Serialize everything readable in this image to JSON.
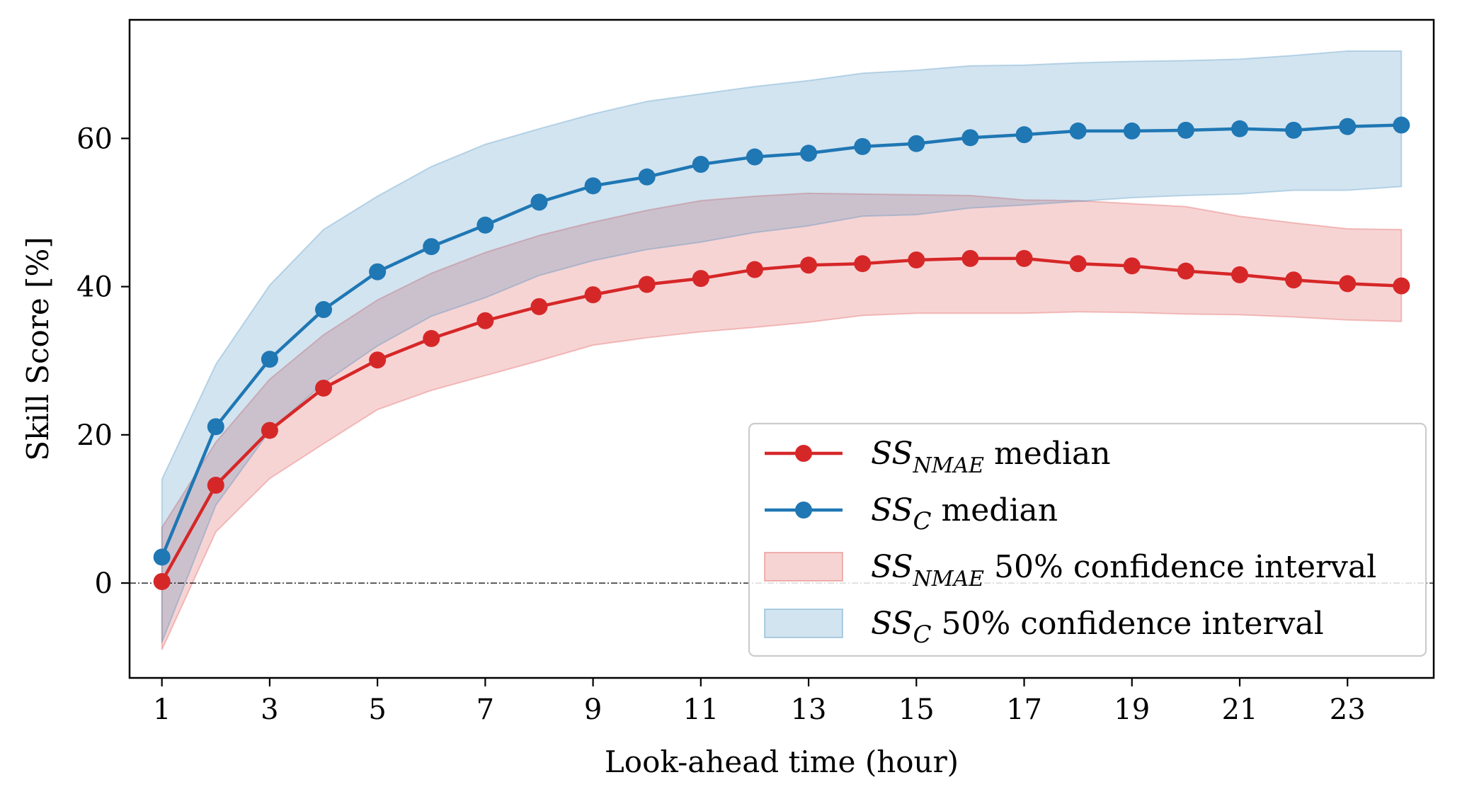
{
  "chart_data": {
    "type": "line",
    "title": "",
    "xlabel": "Look-ahead time (hour)",
    "ylabel": "Skill Score [%]",
    "x": [
      1,
      2,
      3,
      4,
      5,
      6,
      7,
      8,
      9,
      10,
      11,
      12,
      13,
      14,
      15,
      16,
      17,
      18,
      19,
      20,
      21,
      22,
      23,
      24
    ],
    "xlim": [
      0.4,
      24.6
    ],
    "ylim": [
      -12.8,
      76
    ],
    "xticks": [
      1,
      3,
      5,
      7,
      9,
      11,
      13,
      15,
      17,
      19,
      21,
      23
    ],
    "yticks": [
      0,
      20,
      40,
      60
    ],
    "zero_line": true,
    "colors": {
      "red": "#d62728",
      "blue": "#1f77b4"
    },
    "series": [
      {
        "name": "SS_NMAE median",
        "base": "SS",
        "sub": "NMAE",
        "suffix": " median",
        "color": "#d62728",
        "kind": "line",
        "values": [
          0.2,
          13.2,
          20.6,
          26.3,
          30.1,
          33.0,
          35.4,
          37.3,
          38.9,
          40.3,
          41.1,
          42.3,
          42.9,
          43.1,
          43.6,
          43.8,
          43.8,
          43.1,
          42.8,
          42.1,
          41.6,
          40.9,
          40.4,
          40.1
        ]
      },
      {
        "name": "SS_C median",
        "base": "SS",
        "sub": "C",
        "suffix": " median",
        "color": "#1f77b4",
        "kind": "line",
        "values": [
          3.5,
          21.1,
          30.2,
          36.9,
          42.0,
          45.4,
          48.3,
          51.4,
          53.6,
          54.8,
          56.5,
          57.5,
          58.0,
          58.9,
          59.3,
          60.1,
          60.5,
          61.0,
          61.0,
          61.1,
          61.3,
          61.1,
          61.6,
          61.8
        ]
      }
    ],
    "bands": [
      {
        "name": "SS_NMAE 50% confidence interval",
        "base": "SS",
        "sub": "NMAE",
        "suffix": " 50% confidence interval",
        "color": "#d62728",
        "kind": "band",
        "lower": [
          -9,
          6.9,
          14.1,
          18.8,
          23.4,
          26.0,
          28.0,
          30.0,
          32.1,
          33.1,
          33.9,
          34.5,
          35.2,
          36.1,
          36.4,
          36.4,
          36.4,
          36.6,
          36.5,
          36.3,
          36.2,
          35.9,
          35.5,
          35.3
        ],
        "upper": [
          7.5,
          19.0,
          27.5,
          33.5,
          38.2,
          41.8,
          44.6,
          46.9,
          48.7,
          50.3,
          51.6,
          52.2,
          52.6,
          52.5,
          52.4,
          52.3,
          51.7,
          51.6,
          51.2,
          50.8,
          49.5,
          48.6,
          47.8,
          47.7
        ]
      },
      {
        "name": "SS_C 50% confidence interval",
        "base": "SS",
        "sub": "C",
        "suffix": " 50% confidence interval",
        "color": "#1f77b4",
        "kind": "band",
        "lower": [
          -8,
          10.5,
          20.5,
          27.0,
          32.0,
          36.0,
          38.5,
          41.5,
          43.5,
          45.0,
          46.0,
          47.3,
          48.2,
          49.5,
          49.7,
          50.6,
          51.0,
          51.5,
          52.0,
          52.3,
          52.5,
          53.0,
          53.0,
          53.5
        ],
        "upper": [
          14.0,
          29.5,
          40.2,
          47.7,
          52.2,
          56.2,
          59.2,
          61.3,
          63.3,
          65.0,
          66.0,
          67.0,
          67.8,
          68.8,
          69.2,
          69.8,
          69.9,
          70.2,
          70.4,
          70.5,
          70.7,
          71.2,
          71.8,
          71.8
        ]
      }
    ],
    "legend": {
      "position": "lower-right",
      "entries": [
        {
          "base": "SS",
          "sub": "NMAE",
          "suffix": " median",
          "kind": "line",
          "color": "#d62728"
        },
        {
          "base": "SS",
          "sub": "C",
          "suffix": " median",
          "kind": "line",
          "color": "#1f77b4"
        },
        {
          "base": "SS",
          "sub": "NMAE",
          "suffix": " 50% confidence interval",
          "kind": "band",
          "color": "#d62728"
        },
        {
          "base": "SS",
          "sub": "C",
          "suffix": " 50% confidence interval",
          "kind": "band",
          "color": "#1f77b4"
        }
      ]
    }
  }
}
